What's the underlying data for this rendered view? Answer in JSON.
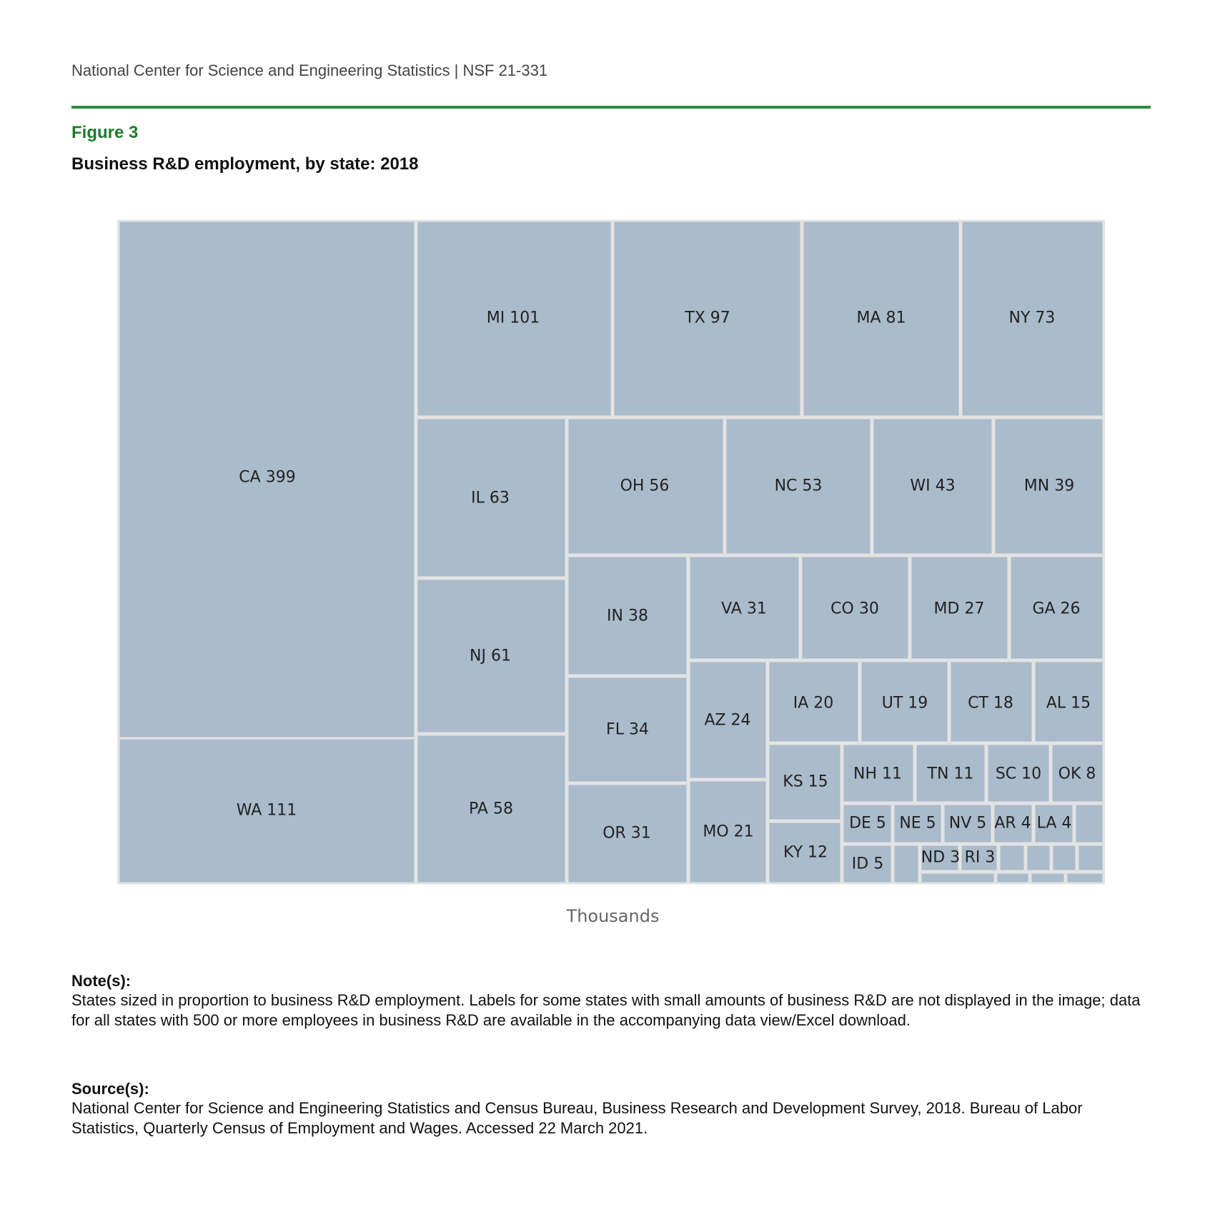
{
  "header": {
    "text": "National Center for Science and Engineering Statistics  |  NSF 21-331"
  },
  "figure": {
    "label": "Figure 3",
    "title": "Business R&D employment, by state: 2018"
  },
  "colors": {
    "accent_green": "#2e8b3e",
    "figure_label": "#1f7a2e",
    "tile_fill": "#aabbcb",
    "tile_border": "#e3e3e3"
  },
  "chart_data": {
    "type": "treemap",
    "title": "Business R&D employment, by state: 2018",
    "units": "Thousands",
    "labeled": [
      {
        "state": "CA",
        "value": 399,
        "label": "CA 399"
      },
      {
        "state": "WA",
        "value": 111,
        "label": "WA 111"
      },
      {
        "state": "MI",
        "value": 101,
        "label": "MI 101"
      },
      {
        "state": "TX",
        "value": 97,
        "label": "TX 97"
      },
      {
        "state": "MA",
        "value": 81,
        "label": "MA 81"
      },
      {
        "state": "NY",
        "value": 73,
        "label": "NY 73"
      },
      {
        "state": "IL",
        "value": 63,
        "label": "IL 63"
      },
      {
        "state": "NJ",
        "value": 61,
        "label": "NJ 61"
      },
      {
        "state": "PA",
        "value": 58,
        "label": "PA 58"
      },
      {
        "state": "OH",
        "value": 56,
        "label": "OH 56"
      },
      {
        "state": "NC",
        "value": 53,
        "label": "NC 53"
      },
      {
        "state": "WI",
        "value": 43,
        "label": "WI 43"
      },
      {
        "state": "MN",
        "value": 39,
        "label": "MN 39"
      },
      {
        "state": "IN",
        "value": 38,
        "label": "IN 38"
      },
      {
        "state": "FL",
        "value": 34,
        "label": "FL 34"
      },
      {
        "state": "OR",
        "value": 31,
        "label": "OR 31"
      },
      {
        "state": "VA",
        "value": 31,
        "label": "VA 31"
      },
      {
        "state": "CO",
        "value": 30,
        "label": "CO 30"
      },
      {
        "state": "MD",
        "value": 27,
        "label": "MD 27"
      },
      {
        "state": "GA",
        "value": 26,
        "label": "GA 26"
      },
      {
        "state": "AZ",
        "value": 24,
        "label": "AZ 24"
      },
      {
        "state": "MO",
        "value": 21,
        "label": "MO 21"
      },
      {
        "state": "IA",
        "value": 20,
        "label": "IA 20"
      },
      {
        "state": "UT",
        "value": 19,
        "label": "UT 19"
      },
      {
        "state": "CT",
        "value": 18,
        "label": "CT 18"
      },
      {
        "state": "AL",
        "value": 15,
        "label": "AL 15"
      },
      {
        "state": "KS",
        "value": 15,
        "label": "KS 15"
      },
      {
        "state": "KY",
        "value": 12,
        "label": "KY 12"
      },
      {
        "state": "NH",
        "value": 11,
        "label": "NH 11"
      },
      {
        "state": "TN",
        "value": 11,
        "label": "TN 11"
      },
      {
        "state": "SC",
        "value": 10,
        "label": "SC 10"
      },
      {
        "state": "OK",
        "value": 8,
        "label": "OK 8"
      },
      {
        "state": "DE",
        "value": 5,
        "label": "DE 5"
      },
      {
        "state": "NE",
        "value": 5,
        "label": "NE 5"
      },
      {
        "state": "NV",
        "value": 5,
        "label": "NV 5"
      },
      {
        "state": "AR",
        "value": 4,
        "label": "AR 4"
      },
      {
        "state": "LA",
        "value": 4,
        "label": "LA 4"
      },
      {
        "state": "ID",
        "value": 5,
        "label": "ID 5"
      },
      {
        "state": "ND",
        "value": 3,
        "label": "ND 3"
      },
      {
        "state": "RI",
        "value": 3,
        "label": "RI 3"
      }
    ],
    "unlabeled_tiles": 11
  },
  "notes": {
    "heading": "Note(s):",
    "text": "States sized in proportion to business R&D employment. Labels for some states with small amounts of business R&D are not displayed in the image; data for all states with 500 or more employees in business R&D are available in the accompanying data view/Excel download."
  },
  "source": {
    "heading": "Source(s):",
    "text": "National Center for Science and Engineering Statistics and Census Bureau, Business Research and Development Survey, 2018. Bureau of Labor Statistics, Quarterly Census of Employment and Wages. Accessed 22 March 2021."
  }
}
